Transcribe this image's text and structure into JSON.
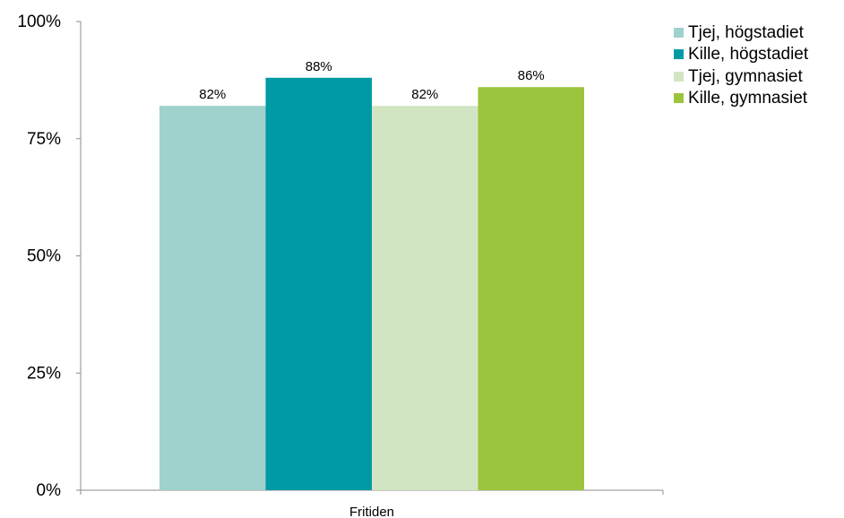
{
  "chart_data": {
    "type": "bar",
    "categories": [
      "Fritiden"
    ],
    "series": [
      {
        "name": "Tjej, högstadiet",
        "values": [
          82
        ],
        "label": "82%",
        "color": "#9fd1cd"
      },
      {
        "name": "Kille, högstadiet",
        "values": [
          88
        ],
        "label": "88%",
        "color": "#009aa5"
      },
      {
        "name": "Tjej, gymnasiet",
        "values": [
          82
        ],
        "label": "82%",
        "color": "#d2e5c2"
      },
      {
        "name": "Kille, gymnasiet",
        "values": [
          86
        ],
        "label": "86%",
        "color": "#9cc43d"
      }
    ],
    "ylim": [
      0,
      100
    ],
    "yticks": [
      0,
      25,
      50,
      75,
      100
    ],
    "ytick_labels": [
      "0%",
      "25%",
      "50%",
      "75%",
      "100%"
    ],
    "xlabel": "",
    "ylabel": "",
    "grid": false,
    "legend_position": "top-right"
  }
}
